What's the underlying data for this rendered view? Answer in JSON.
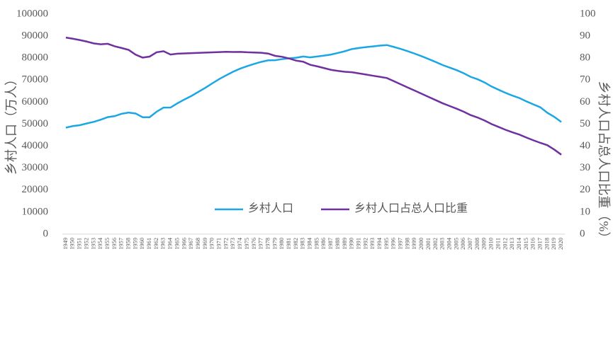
{
  "chart_data": {
    "type": "line",
    "categories": [
      "1949",
      "1950",
      "1951",
      "1952",
      "1953",
      "1954",
      "1955",
      "1956",
      "1957",
      "1958",
      "1959",
      "1960",
      "1961",
      "1962",
      "1963",
      "1964",
      "1965",
      "1966",
      "1967",
      "1968",
      "1969",
      "1970",
      "1971",
      "1972",
      "1973",
      "1974",
      "1975",
      "1976",
      "1977",
      "1978",
      "1979",
      "1980",
      "1981",
      "1982",
      "1983",
      "1984",
      "1985",
      "1986",
      "1987",
      "1988",
      "1989",
      "1990",
      "1991",
      "1992",
      "1993",
      "1994",
      "1995",
      "1996",
      "1997",
      "1998",
      "1999",
      "2000",
      "2001",
      "2002",
      "2003",
      "2004",
      "2005",
      "2006",
      "2007",
      "2008",
      "2009",
      "2010",
      "2011",
      "2012",
      "2013",
      "2014",
      "2015",
      "2016",
      "2017",
      "2018",
      "2019",
      "2020"
    ],
    "series": [
      {
        "name": "乡村人口",
        "color": "#1aa7e3",
        "values": [
          48402,
          49106,
          49528,
          50319,
          51036,
          52017,
          53180,
          53643,
          54704,
          55273,
          54836,
          53134,
          53152,
          55636,
          57526,
          57549,
          59493,
          61229,
          62820,
          64704,
          66554,
          68568,
          70520,
          72242,
          73866,
          75264,
          76390,
          77376,
          78305,
          79014,
          79047,
          79565,
          79901,
          80174,
          80734,
          80340,
          80757,
          81141,
          81626,
          82365,
          83164,
          84138,
          84620,
          84996,
          85344,
          85681,
          85947,
          85085,
          84177,
          83153,
          82038,
          80837,
          79563,
          78241,
          76851,
          75705,
          74544,
          73160,
          71496,
          70399,
          68938,
          67113,
          65656,
          64222,
          62961,
          61866,
          60346,
          58973,
          57661,
          55162,
          53300,
          50979
        ]
      },
      {
        "name": "乡村人口占总人口比重",
        "color": "#7030a0",
        "axis": "y2",
        "values": [
          89.36,
          88.82,
          88.22,
          87.54,
          86.69,
          86.31,
          86.52,
          85.38,
          84.61,
          83.75,
          81.59,
          80.25,
          80.71,
          82.67,
          83.16,
          81.63,
          82.02,
          82.14,
          82.26,
          82.38,
          82.5,
          82.62,
          82.74,
          82.87,
          82.8,
          82.84,
          82.66,
          82.56,
          82.45,
          82.08,
          81.04,
          80.61,
          79.84,
          78.87,
          78.38,
          76.99,
          76.29,
          75.48,
          74.68,
          74.19,
          73.79,
          73.59,
          73.06,
          72.54,
          72.01,
          71.49,
          70.96,
          69.52,
          68.09,
          66.65,
          65.22,
          63.78,
          62.34,
          60.91,
          59.47,
          58.24,
          57.01,
          55.66,
          54.11,
          53.01,
          51.66,
          50.05,
          48.73,
          47.43,
          46.27,
          45.23,
          43.9,
          42.65,
          41.48,
          40.42,
          38.4,
          36.11
        ]
      }
    ],
    "y_label": "乡村人口（万人）",
    "y2_label": "乡村人口占总人口比重（%）",
    "ylim": [
      0,
      100000
    ],
    "yticks": [
      0,
      10000,
      20000,
      30000,
      40000,
      50000,
      60000,
      70000,
      80000,
      90000,
      100000
    ],
    "y2lim": [
      0,
      100
    ],
    "y2ticks": [
      0,
      10,
      20,
      30,
      40,
      50,
      60,
      70,
      80,
      90,
      100
    ]
  }
}
